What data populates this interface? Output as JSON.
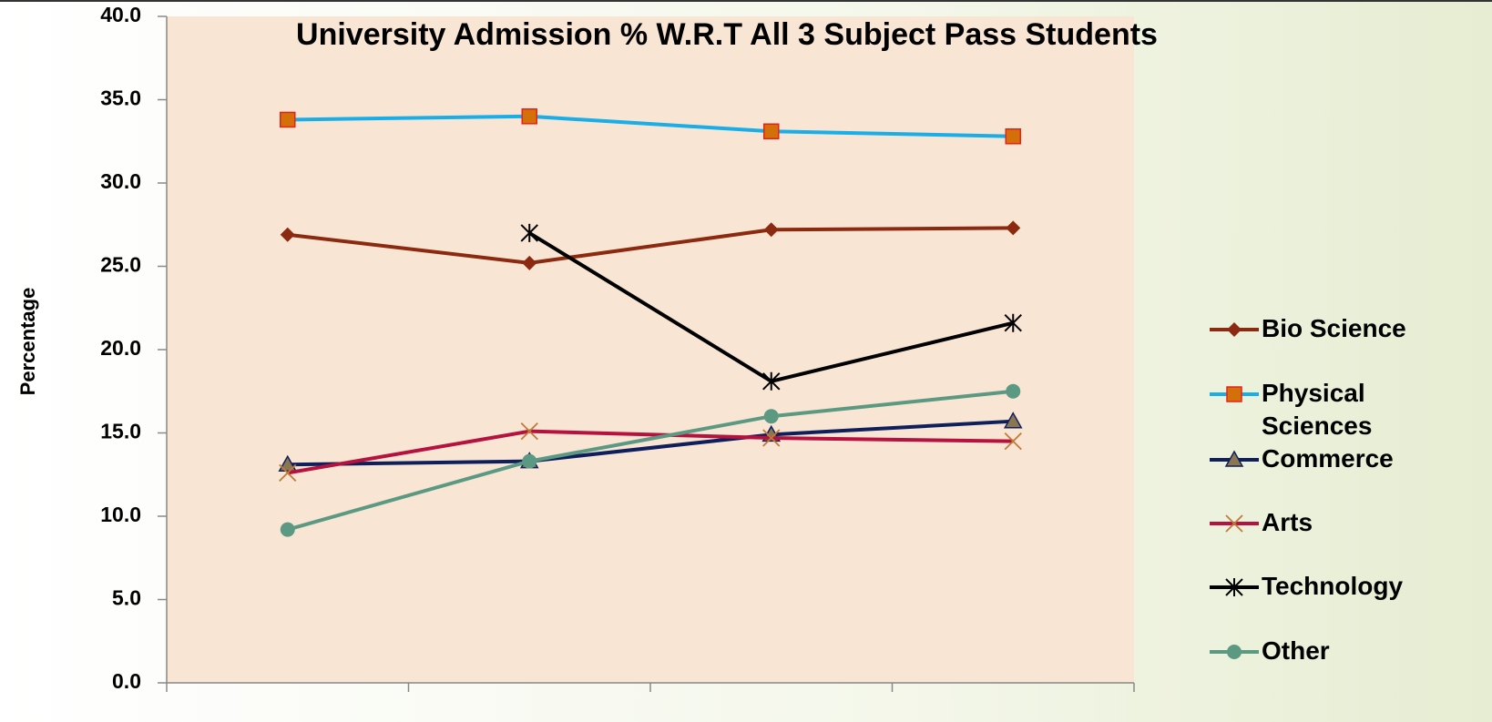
{
  "chart_data": {
    "type": "line",
    "title": "University Admission % W.R.T All 3 Subject Pass Students",
    "y_label": "Percentage",
    "categories": [
      null,
      null,
      null,
      null
    ],
    "series": [
      {
        "name": "Bio Science",
        "color": "#8b2a10",
        "marker": "diamond",
        "marker_color": "#8b2a10",
        "values": [
          26.9,
          25.2,
          27.2,
          27.3
        ]
      },
      {
        "name": "Physical Sciences",
        "color": "#19aee8",
        "marker": "square",
        "marker_color": "#d4700a",
        "values": [
          33.8,
          34.0,
          33.1,
          32.8
        ]
      },
      {
        "name": "Commerce",
        "color": "#0f1f5c",
        "marker": "triangle",
        "marker_color": "#8a7650",
        "values": [
          13.1,
          13.3,
          14.9,
          15.7
        ]
      },
      {
        "name": "Arts",
        "color": "#b5123f",
        "marker": "x",
        "marker_color": "#c07a3a",
        "values": [
          12.6,
          15.1,
          14.7,
          14.5
        ]
      },
      {
        "name": "Technology",
        "color": "#000000",
        "marker": "star",
        "marker_color": "#000000",
        "values": [
          null,
          27.0,
          18.1,
          21.6
        ]
      },
      {
        "name": "Other",
        "color": "#5c9983",
        "marker": "circle",
        "marker_color": "#5c9983",
        "values": [
          9.2,
          13.3,
          16.0,
          17.5
        ]
      }
    ],
    "ylim": [
      0,
      40
    ],
    "yticks": [
      {
        "value": 0,
        "label": "0.0"
      },
      {
        "value": 5,
        "label": "5.0"
      },
      {
        "value": 10,
        "label": "10.0"
      },
      {
        "value": 15,
        "label": "15.0"
      },
      {
        "value": 20,
        "label": "20.0"
      },
      {
        "value": 25,
        "label": "25.0"
      },
      {
        "value": 30,
        "label": "30.0"
      },
      {
        "value": 35,
        "label": "35.0"
      },
      {
        "value": 40,
        "label": "40.0"
      }
    ],
    "plot_background": "#f9e5d3",
    "legend": "right"
  }
}
